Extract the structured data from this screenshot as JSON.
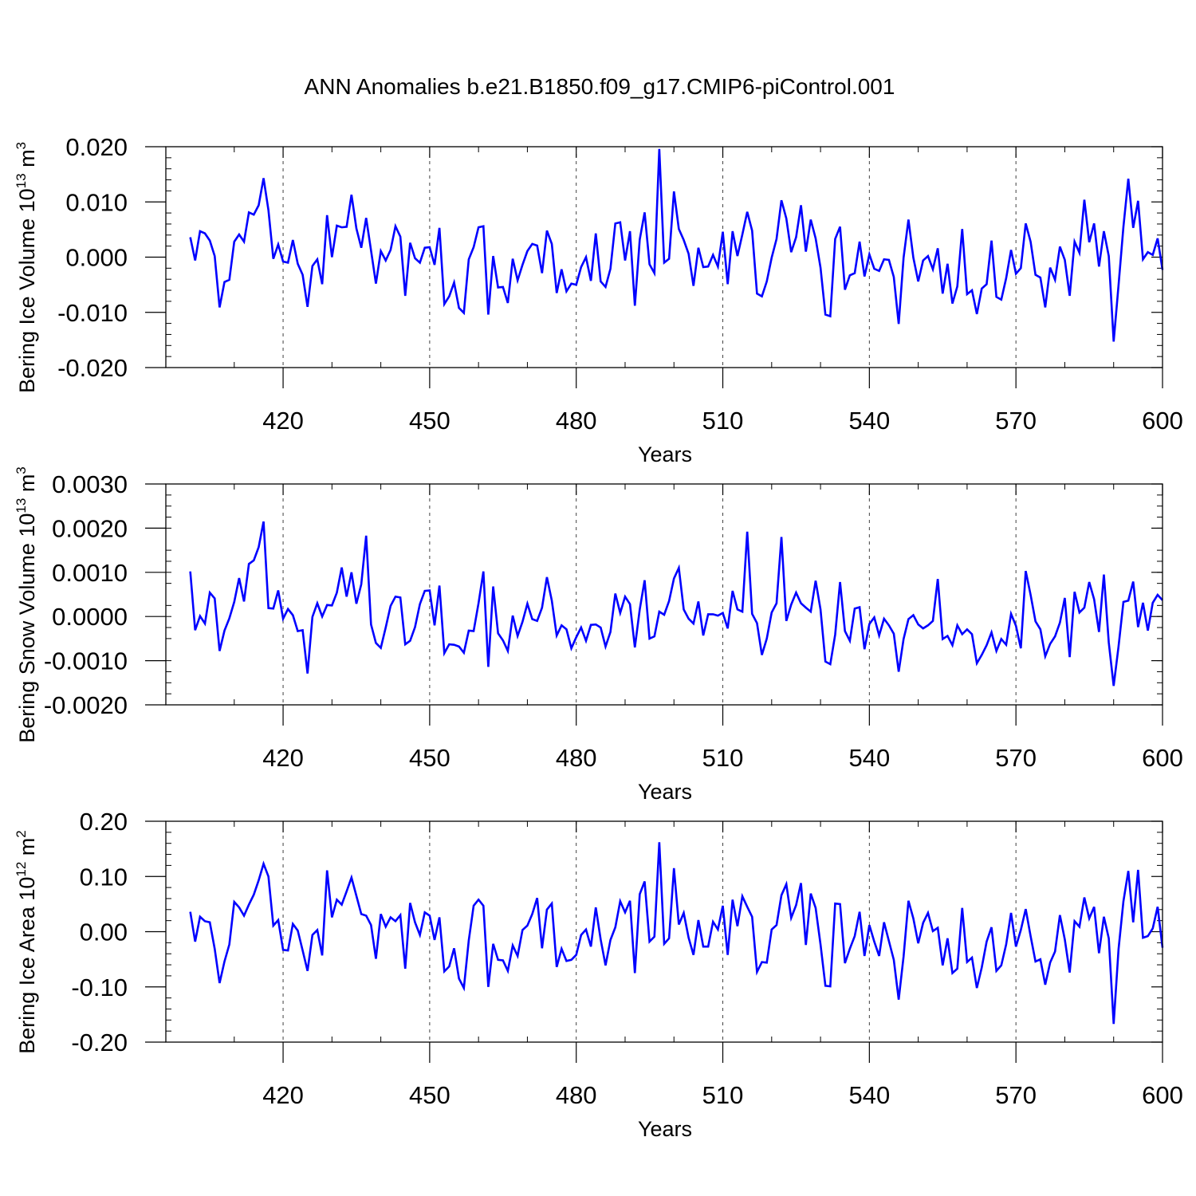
{
  "figure_title": "ANN Anomalies b.e21.B1850.f09_g17.CMIP6-piControl.001",
  "line_color": "#0000ff",
  "chart_data": [
    {
      "type": "line",
      "title": "",
      "xlabel": "Years",
      "ylabel": {
        "text": "Bering Ice Volume 10",
        "exp": "13",
        "unit": "m",
        "unit_exp": "3"
      },
      "xlim": [
        396,
        600
      ],
      "ylim": [
        -0.02,
        0.02
      ],
      "xticks": [
        420,
        450,
        480,
        510,
        540,
        570,
        600
      ],
      "yticks": [
        -0.02,
        -0.01,
        0.0,
        0.01,
        0.02
      ],
      "ytick_labels": [
        "-0.020",
        "-0.010",
        "0.000",
        "0.010",
        "0.020"
      ],
      "x_start": 401,
      "y": [
        0.0036,
        -0.0006,
        0.0047,
        0.0043,
        0.003,
        0.0002,
        -0.0091,
        -0.0045,
        -0.0041,
        0.0028,
        0.0041,
        0.0028,
        0.0081,
        0.0077,
        0.0094,
        0.0143,
        0.0085,
        -0.0003,
        0.0023,
        -0.0008,
        -0.001,
        0.0031,
        -0.0012,
        -0.0032,
        -0.009,
        -0.0016,
        -0.0004,
        -0.0049,
        0.0076,
        0.0,
        0.0057,
        0.0054,
        0.0055,
        0.0113,
        0.0052,
        0.0017,
        0.0071,
        0.0012,
        -0.0048,
        0.0011,
        -0.0006,
        0.0013,
        0.0056,
        0.0037,
        -0.007,
        0.0026,
        -0.0002,
        -0.001,
        0.0017,
        0.0018,
        -0.0014,
        0.0053,
        -0.0085,
        -0.0071,
        -0.0046,
        -0.0092,
        -0.0101,
        -0.0004,
        0.0018,
        0.0054,
        0.0056,
        -0.0104,
        0.0002,
        -0.0055,
        -0.0054,
        -0.0083,
        -0.0003,
        -0.0042,
        -0.0014,
        0.0011,
        0.0024,
        0.0021,
        -0.0029,
        0.0048,
        0.0024,
        -0.0065,
        -0.0022,
        -0.0062,
        -0.0048,
        -0.005,
        -0.0018,
        0.0,
        -0.0043,
        0.0043,
        -0.0044,
        -0.0054,
        -0.0021,
        0.0061,
        0.0063,
        -0.0006,
        0.0047,
        -0.0088,
        0.0032,
        0.0081,
        -0.0013,
        -0.0029,
        0.0196,
        -0.001,
        -0.0003,
        0.0119,
        0.0051,
        0.0031,
        0.0006,
        -0.0052,
        0.0017,
        -0.0018,
        -0.0017,
        0.0004,
        -0.0017,
        0.0046,
        -0.0049,
        0.0047,
        0.0002,
        0.0041,
        0.0082,
        0.0048,
        -0.0066,
        -0.0071,
        -0.0044,
        -0.0001,
        0.0033,
        0.0103,
        0.007,
        0.0009,
        0.0036,
        0.0094,
        0.001,
        0.0068,
        0.0034,
        -0.0019,
        -0.0104,
        -0.0107,
        0.0033,
        0.0055,
        -0.0059,
        -0.0033,
        -0.0029,
        0.0028,
        -0.0035,
        0.0005,
        -0.0021,
        -0.0025,
        -0.0004,
        -0.0005,
        -0.0036,
        -0.0121,
        -0.0001,
        0.0068,
        -0.0001,
        -0.0044,
        -0.0006,
        0.0002,
        -0.0022,
        0.0016,
        -0.0066,
        -0.0012,
        -0.0084,
        -0.0053,
        0.0051,
        -0.0067,
        -0.006,
        -0.0103,
        -0.0057,
        -0.0049,
        0.003,
        -0.0072,
        -0.0077,
        -0.0038,
        0.0013,
        -0.003,
        -0.002,
        0.0061,
        0.0028,
        -0.0032,
        -0.0037,
        -0.0091,
        -0.0019,
        -0.0041,
        0.0019,
        -0.0005,
        -0.007,
        0.0028,
        0.0008,
        0.0104,
        0.0027,
        0.0061,
        -0.0017,
        0.0047,
        0.0002,
        -0.0153,
        -0.0051,
        0.0055,
        0.0142,
        0.0053,
        0.0102,
        -0.0004,
        0.0009,
        0.0004,
        0.0034,
        -0.0023
      ]
    },
    {
      "type": "line",
      "title": "",
      "xlabel": "Years",
      "ylabel": {
        "text": "Bering Snow Volume 10",
        "exp": "13",
        "unit": "m",
        "unit_exp": "3"
      },
      "xlim": [
        396,
        600
      ],
      "ylim": [
        -0.002,
        0.003
      ],
      "xticks": [
        420,
        450,
        480,
        510,
        540,
        570,
        600
      ],
      "yticks": [
        -0.002,
        -0.001,
        0.0,
        0.001,
        0.002,
        0.003
      ],
      "ytick_labels": [
        "-0.0020",
        "-0.0010",
        "0.0000",
        "0.0010",
        "0.0020",
        "0.0030"
      ],
      "x_start": 401,
      "y": [
        0.00102,
        -0.00031,
        1e-05,
        -0.00016,
        0.00054,
        0.00041,
        -0.00078,
        -0.00032,
        -4e-05,
        0.00033,
        0.00087,
        0.00034,
        0.00119,
        0.00127,
        0.00157,
        0.00215,
        0.00019,
        0.00018,
        0.00059,
        -5e-05,
        0.00017,
        3e-05,
        -0.00033,
        -0.00031,
        -0.00129,
        -1e-05,
        0.0003,
        0.0,
        0.00026,
        0.00025,
        0.00054,
        0.00111,
        0.00045,
        0.001,
        0.00029,
        0.00073,
        0.00183,
        -0.00018,
        -0.0006,
        -0.00071,
        -0.00025,
        0.00024,
        0.00045,
        0.00043,
        -0.00063,
        -0.00055,
        -0.00024,
        0.00028,
        0.00058,
        0.00059,
        -0.0002,
        0.0007,
        -0.00083,
        -0.00063,
        -0.00064,
        -0.00068,
        -0.00082,
        -0.00032,
        -0.00033,
        0.0003,
        0.00102,
        -0.00114,
        0.00068,
        -0.00038,
        -0.00054,
        -0.00078,
        2e-05,
        -0.00044,
        -0.00012,
        0.00029,
        -6e-05,
        -0.0001,
        0.0002,
        0.00089,
        0.00036,
        -0.00043,
        -0.0002,
        -0.00029,
        -0.00072,
        -0.00047,
        -0.00025,
        -0.00055,
        -0.00019,
        -0.00018,
        -0.00025,
        -0.00068,
        -0.00035,
        0.00052,
        8e-05,
        0.00045,
        0.00028,
        -0.0007,
        0.00016,
        0.00082,
        -0.0005,
        -0.00045,
        0.00011,
        4e-05,
        0.00035,
        0.00086,
        0.0011,
        0.00016,
        -5e-05,
        -0.00016,
        0.00034,
        -0.00043,
        5e-05,
        5e-05,
        2e-05,
        8e-05,
        -0.00027,
        0.00058,
        0.00016,
        0.00011,
        0.00192,
        6e-05,
        -0.00015,
        -0.00087,
        -0.0005,
        9e-05,
        0.0003,
        0.0018,
        -0.0001,
        0.00027,
        0.00054,
        0.0003,
        0.0002,
        0.00011,
        0.00081,
        0.00016,
        -0.00102,
        -0.00108,
        -0.00041,
        0.00078,
        -0.00033,
        -0.00055,
        0.00018,
        0.00021,
        -0.00074,
        -0.00017,
        -2e-05,
        -0.00043,
        -5e-05,
        -0.0002,
        -0.00039,
        -0.00125,
        -0.00051,
        -6e-05,
        3e-05,
        -0.00018,
        -0.00027,
        -0.0002,
        -0.0001,
        0.00085,
        -0.00051,
        -0.00044,
        -0.00065,
        -0.0002,
        -0.0004,
        -0.00029,
        -0.0004,
        -0.00106,
        -0.00087,
        -0.00065,
        -0.00036,
        -0.00078,
        -0.00051,
        -0.00064,
        6e-05,
        -0.00021,
        -0.00072,
        0.00103,
        0.00049,
        -0.00011,
        -0.00029,
        -0.0009,
        -0.00062,
        -0.00045,
        -0.00014,
        0.00042,
        -0.00092,
        0.00056,
        9e-05,
        0.0002,
        0.00078,
        0.00039,
        -0.00035,
        0.00095,
        -0.00059,
        -0.00157,
        -0.00068,
        0.00033,
        0.00036,
        0.00079,
        -0.00024,
        0.00031,
        -0.00032,
        0.00031,
        0.00049,
        0.00037
      ]
    },
    {
      "type": "line",
      "title": "",
      "xlabel": "Years",
      "ylabel": {
        "text": "Bering Ice Area 10",
        "exp": "12",
        "unit": "m",
        "unit_exp": "2"
      },
      "xlim": [
        396,
        600
      ],
      "ylim": [
        -0.2,
        0.2
      ],
      "xticks": [
        420,
        450,
        480,
        510,
        540,
        570,
        600
      ],
      "yticks": [
        -0.2,
        -0.1,
        0.0,
        0.1,
        0.2
      ],
      "ytick_labels": [
        "-0.20",
        "-0.10",
        "0.00",
        "0.10",
        "0.20"
      ],
      "x_start": 401,
      "y": [
        0.036,
        -0.018,
        0.027,
        0.019,
        0.017,
        -0.031,
        -0.093,
        -0.054,
        -0.023,
        0.054,
        0.044,
        0.029,
        0.049,
        0.067,
        0.093,
        0.123,
        0.1,
        0.011,
        0.021,
        -0.033,
        -0.034,
        0.014,
        0.002,
        -0.034,
        -0.071,
        -0.006,
        0.003,
        -0.043,
        0.111,
        0.026,
        0.058,
        0.049,
        0.073,
        0.098,
        0.065,
        0.032,
        0.029,
        0.012,
        -0.049,
        0.032,
        0.009,
        0.026,
        0.019,
        0.03,
        -0.067,
        0.052,
        0.017,
        -0.006,
        0.035,
        0.029,
        -0.015,
        0.026,
        -0.072,
        -0.063,
        -0.03,
        -0.085,
        -0.102,
        -0.016,
        0.047,
        0.058,
        0.047,
        -0.1,
        -0.022,
        -0.051,
        -0.052,
        -0.071,
        -0.025,
        -0.044,
        0.003,
        0.011,
        0.032,
        0.061,
        -0.03,
        0.04,
        0.051,
        -0.064,
        -0.031,
        -0.053,
        -0.051,
        -0.042,
        -0.006,
        0.004,
        -0.027,
        0.044,
        -0.014,
        -0.061,
        -0.015,
        0.008,
        0.055,
        0.035,
        0.056,
        -0.075,
        0.068,
        0.091,
        -0.018,
        -0.009,
        0.162,
        -0.022,
        -0.012,
        0.115,
        0.013,
        0.034,
        -0.011,
        -0.042,
        0.021,
        -0.027,
        -0.027,
        0.018,
        0.004,
        0.047,
        -0.042,
        0.058,
        0.01,
        0.064,
        0.045,
        0.027,
        -0.073,
        -0.055,
        -0.056,
        0.004,
        0.012,
        0.066,
        0.086,
        0.025,
        0.048,
        0.088,
        -0.024,
        0.069,
        0.043,
        -0.023,
        -0.098,
        -0.099,
        0.051,
        0.05,
        -0.057,
        -0.031,
        -0.008,
        0.036,
        -0.044,
        0.012,
        -0.018,
        -0.044,
        0.017,
        -0.017,
        -0.051,
        -0.123,
        -0.045,
        0.056,
        0.024,
        -0.021,
        0.016,
        0.034,
        0.001,
        0.007,
        -0.061,
        -0.012,
        -0.075,
        -0.067,
        0.043,
        -0.055,
        -0.047,
        -0.102,
        -0.065,
        -0.018,
        0.008,
        -0.071,
        -0.061,
        -0.023,
        0.034,
        -0.027,
        0.003,
        0.041,
        -0.008,
        -0.054,
        -0.05,
        -0.096,
        -0.056,
        -0.036,
        0.03,
        -0.014,
        -0.074,
        0.019,
        0.009,
        0.062,
        0.024,
        0.045,
        -0.039,
        0.027,
        -0.012,
        -0.167,
        -0.032,
        0.055,
        0.11,
        0.017,
        0.112,
        -0.011,
        -0.008,
        0.006,
        0.045,
        -0.029
      ]
    }
  ]
}
